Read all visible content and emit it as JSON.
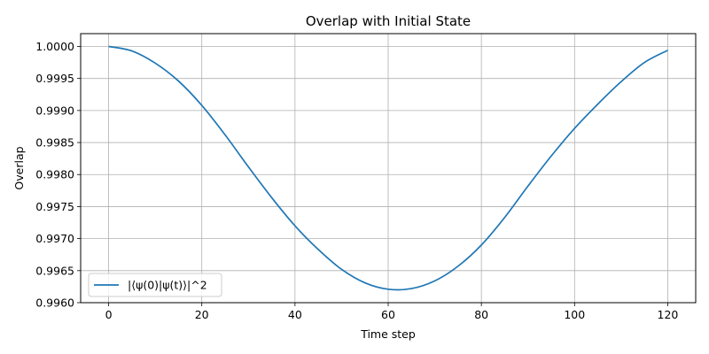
{
  "chart_data": {
    "type": "line",
    "title": "Overlap with Initial State",
    "xlabel": "Time step",
    "ylabel": "Overlap",
    "xlim": [
      -6,
      126
    ],
    "ylim": [
      0.996,
      1.0002
    ],
    "xticks": [
      0,
      20,
      40,
      60,
      80,
      100,
      120
    ],
    "xtick_labels": [
      "0",
      "20",
      "40",
      "60",
      "80",
      "100",
      "120"
    ],
    "yticks": [
      0.996,
      0.9965,
      0.997,
      0.9975,
      0.998,
      0.9985,
      0.999,
      0.9995,
      1.0
    ],
    "ytick_labels": [
      "0.9960",
      "0.9965",
      "0.9970",
      "0.9975",
      "0.9980",
      "0.9985",
      "0.9990",
      "0.9995",
      "1.0000"
    ],
    "grid": true,
    "legend_position": "lower-left",
    "series": [
      {
        "name": "|⟨ψ(0)|ψ(t)⟩|^2",
        "color": "#1f77b4",
        "x": [
          0,
          5,
          10,
          15,
          20,
          25,
          30,
          35,
          40,
          45,
          50,
          55,
          60,
          65,
          70,
          75,
          80,
          85,
          90,
          95,
          100,
          105,
          110,
          115,
          120
        ],
        "y": [
          1.0,
          0.99993,
          0.99974,
          0.99946,
          0.99908,
          0.99862,
          0.99812,
          0.99764,
          0.9972,
          0.99683,
          0.99652,
          0.99631,
          0.99621,
          0.99622,
          0.99634,
          0.99657,
          0.9969,
          0.99733,
          0.99782,
          0.99829,
          0.99872,
          0.9991,
          0.99945,
          0.99975,
          0.99994
        ]
      }
    ]
  }
}
